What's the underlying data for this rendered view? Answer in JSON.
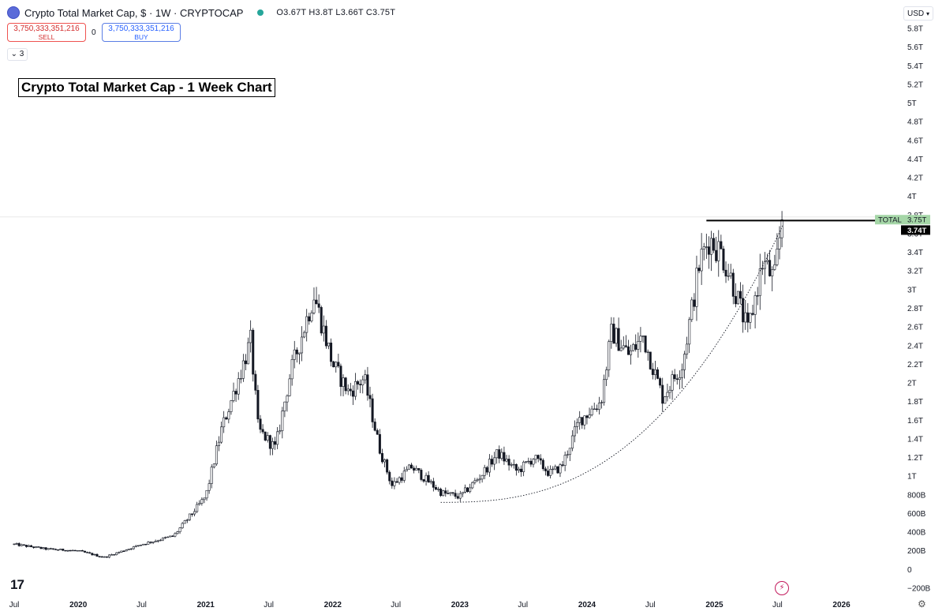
{
  "header": {
    "title": "Crypto Total Market Cap, $ · 1W · CRYPTOCAP",
    "ohlc": "O3.67T H3.8T L3.66T C3.75T",
    "sell_price": "3,750,333,351,216",
    "sell_label": "SELL",
    "buy_price": "3,750,333,351,216",
    "buy_label": "BUY",
    "spread": "0",
    "indicators_count": "3",
    "currency": "USD"
  },
  "chart_data": {
    "type": "candlestick",
    "title": "Crypto Total Market Cap - 1 Week Chart",
    "series_label": "TOTAL",
    "last_value_label": "3.75T",
    "line_value_label": "3.74T",
    "yaxis_ticks": [
      "5.8T",
      "5.6T",
      "5.4T",
      "5.2T",
      "5T",
      "4.8T",
      "4.6T",
      "4.4T",
      "4.2T",
      "4T",
      "3.8T",
      "3.6T",
      "3.4T",
      "3.2T",
      "3T",
      "2.8T",
      "2.6T",
      "2.4T",
      "2.2T",
      "2T",
      "1.8T",
      "1.6T",
      "1.4T",
      "1.2T",
      "1T",
      "800B",
      "600B",
      "400B",
      "200B",
      "0",
      "−200B"
    ],
    "xaxis_ticks": [
      "Jul",
      "2020",
      "Jul",
      "2021",
      "Jul",
      "2022",
      "Jul",
      "2023",
      "Jul",
      "2024",
      "Jul",
      "2025",
      "Jul",
      "2026"
    ],
    "ylim": [
      -0.2,
      5.8
    ],
    "units": "T",
    "anchors": [
      [
        "2019-07-01",
        0.27
      ],
      [
        "2019-10-01",
        0.22
      ],
      [
        "2020-01-01",
        0.2
      ],
      [
        "2020-03-15",
        0.13
      ],
      [
        "2020-07-01",
        0.27
      ],
      [
        "2020-10-01",
        0.36
      ],
      [
        "2021-01-01",
        0.78
      ],
      [
        "2021-02-15",
        1.5
      ],
      [
        "2021-04-01",
        2.0
      ],
      [
        "2021-05-10",
        2.45
      ],
      [
        "2021-06-01",
        1.5
      ],
      [
        "2021-07-20",
        1.3
      ],
      [
        "2021-09-01",
        2.1
      ],
      [
        "2021-11-08",
        2.95
      ],
      [
        "2022-01-01",
        2.2
      ],
      [
        "2022-02-15",
        1.9
      ],
      [
        "2022-04-01",
        2.05
      ],
      [
        "2022-05-15",
        1.3
      ],
      [
        "2022-06-20",
        0.9
      ],
      [
        "2022-08-15",
        1.1
      ],
      [
        "2022-11-10",
        0.82
      ],
      [
        "2023-01-01",
        0.78
      ],
      [
        "2023-03-01",
        1.0
      ],
      [
        "2023-04-20",
        1.25
      ],
      [
        "2023-06-15",
        1.05
      ],
      [
        "2023-08-01",
        1.2
      ],
      [
        "2023-09-15",
        1.03
      ],
      [
        "2023-10-20",
        1.1
      ],
      [
        "2023-12-10",
        1.6
      ],
      [
        "2024-02-10",
        1.8
      ],
      [
        "2024-03-12",
        2.55
      ],
      [
        "2024-05-01",
        2.3
      ],
      [
        "2024-06-10",
        2.5
      ],
      [
        "2024-08-05",
        1.85
      ],
      [
        "2024-10-01",
        2.2
      ],
      [
        "2024-11-20",
        3.3
      ],
      [
        "2024-12-17",
        3.55
      ],
      [
        "2025-01-20",
        3.4
      ],
      [
        "2025-02-20",
        3.1
      ],
      [
        "2025-04-07",
        2.55
      ],
      [
        "2025-05-20",
        3.3
      ],
      [
        "2025-06-22",
        3.1
      ],
      [
        "2025-07-14",
        3.75
      ]
    ],
    "resistance_level": 3.74,
    "curve_start": [
      "2022-11-07",
      0.72
    ],
    "curve_end": [
      "2025-07-18",
      3.7
    ]
  }
}
